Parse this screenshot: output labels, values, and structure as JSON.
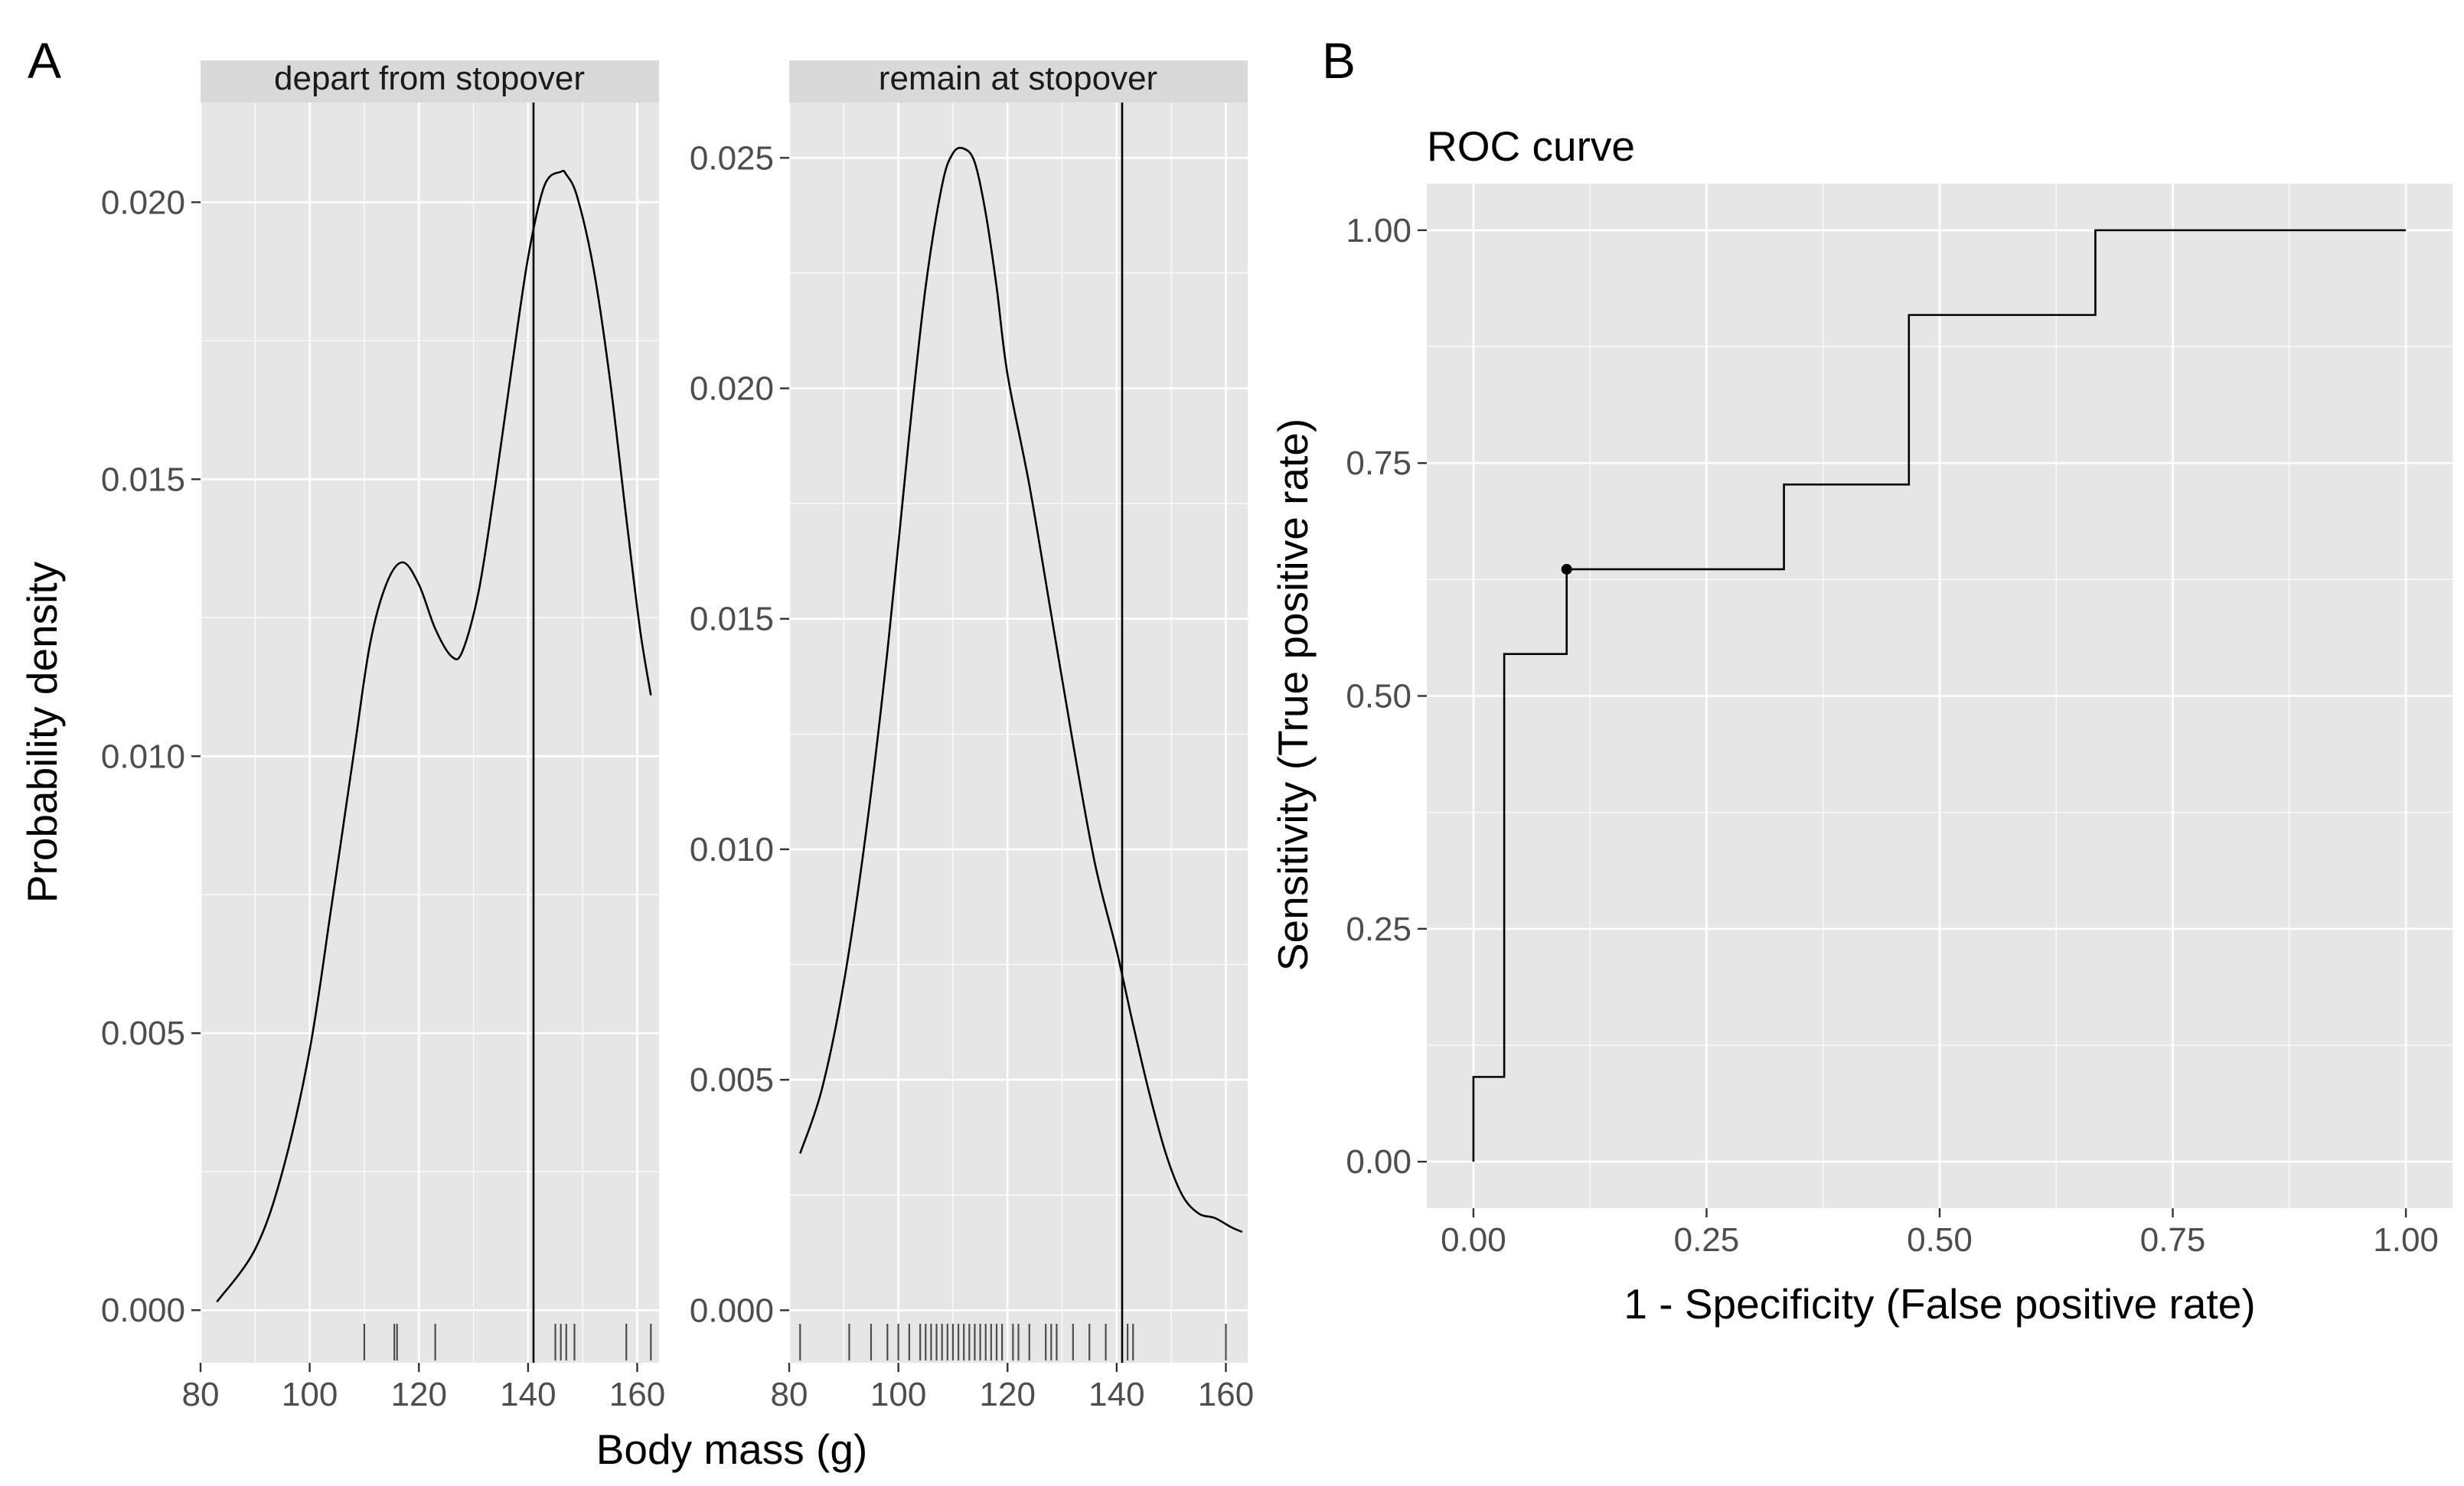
{
  "figure": {
    "panel_a_tag": "A",
    "panel_b_tag": "B"
  },
  "chart_data": [
    {
      "type": "area",
      "strip_label": "depart from stopover",
      "xlabel": "Body mass (g)",
      "ylabel": "Probability density",
      "xlim": [
        80,
        164
      ],
      "ylim": [
        -0.00095,
        0.0218
      ],
      "x_ticks": [
        80,
        100,
        120,
        140,
        160
      ],
      "x_tick_labels": [
        "80",
        "100",
        "120",
        "140",
        "160"
      ],
      "y_ticks": [
        0.0,
        0.005,
        0.01,
        0.015,
        0.02
      ],
      "y_tick_labels": [
        "0.000",
        "0.005",
        "0.010",
        "0.015",
        "0.020"
      ],
      "threshold_x": 141,
      "curve_x": [
        83,
        90,
        95,
        100,
        104,
        108,
        111,
        114,
        117,
        120,
        123,
        126,
        128,
        131,
        134,
        137,
        140,
        143,
        146,
        147,
        149,
        152,
        155,
        158,
        160.5,
        162.5
      ],
      "curve_y": [
        0.00015,
        0.0011,
        0.0025,
        0.0047,
        0.0073,
        0.01,
        0.012,
        0.0131,
        0.0135,
        0.0131,
        0.0123,
        0.0118,
        0.0119,
        0.013,
        0.0149,
        0.017,
        0.019,
        0.0203,
        0.02055,
        0.0205,
        0.0201,
        0.0188,
        0.0168,
        0.0143,
        0.0123,
        0.0111
      ],
      "rug_x": [
        110,
        115.5,
        116,
        123,
        145,
        146,
        147,
        148.5,
        158,
        162.5
      ]
    },
    {
      "type": "area",
      "strip_label": "remain at stopover",
      "xlim": [
        80,
        164
      ],
      "ylim": [
        -0.00114,
        0.0262
      ],
      "x_ticks": [
        80,
        100,
        120,
        140,
        160
      ],
      "x_tick_labels": [
        "80",
        "100",
        "120",
        "140",
        "160"
      ],
      "y_ticks": [
        0.0,
        0.005,
        0.01,
        0.015,
        0.02,
        0.025
      ],
      "y_tick_labels": [
        "0.000",
        "0.005",
        "0.010",
        "0.015",
        "0.020",
        "0.025"
      ],
      "threshold_x": 141,
      "curve_x": [
        82,
        86,
        90,
        94,
        98,
        102,
        105,
        108,
        110,
        112,
        114,
        116,
        118,
        120,
        124,
        128,
        132,
        136,
        140,
        143,
        146,
        149,
        152,
        155,
        158,
        161,
        163
      ],
      "curve_y": [
        0.0034,
        0.0048,
        0.0071,
        0.0103,
        0.0143,
        0.019,
        0.0222,
        0.0244,
        0.0251,
        0.0252,
        0.0249,
        0.0238,
        0.0222,
        0.0203,
        0.0179,
        0.0151,
        0.0123,
        0.0097,
        0.0078,
        0.0062,
        0.0047,
        0.0034,
        0.0025,
        0.0021,
        0.002,
        0.0018,
        0.0017
      ],
      "rug_x": [
        82,
        91,
        95,
        98,
        100,
        102,
        104,
        105,
        106,
        107,
        108,
        109,
        110,
        111,
        112,
        113,
        114,
        115,
        116,
        117,
        118,
        119,
        121,
        122,
        124,
        127,
        128,
        129,
        132,
        135,
        138,
        142,
        143,
        160
      ]
    },
    {
      "type": "line",
      "title": "ROC curve",
      "xlabel": "1 - Specificity (False positive rate)",
      "ylabel": "Sensitivity (True positive rate)",
      "xlim": [
        -0.05,
        1.05
      ],
      "ylim": [
        -0.05,
        1.05
      ],
      "x_ticks": [
        0.0,
        0.25,
        0.5,
        0.75,
        1.0
      ],
      "x_tick_labels": [
        "0.00",
        "0.25",
        "0.50",
        "0.75",
        "1.00"
      ],
      "y_ticks": [
        0.0,
        0.25,
        0.5,
        0.75,
        1.0
      ],
      "y_tick_labels": [
        "0.00",
        "0.25",
        "0.50",
        "0.75",
        "1.00"
      ],
      "fpr": [
        0.0,
        0.0,
        0.033,
        0.033,
        0.1,
        0.1,
        0.333,
        0.333,
        0.467,
        0.467,
        0.667,
        0.667,
        1.0
      ],
      "tpr": [
        0.0,
        0.091,
        0.091,
        0.545,
        0.545,
        0.636,
        0.636,
        0.727,
        0.727,
        0.909,
        0.909,
        1.0,
        1.0
      ],
      "highlight_point": [
        0.1,
        0.636
      ]
    }
  ]
}
